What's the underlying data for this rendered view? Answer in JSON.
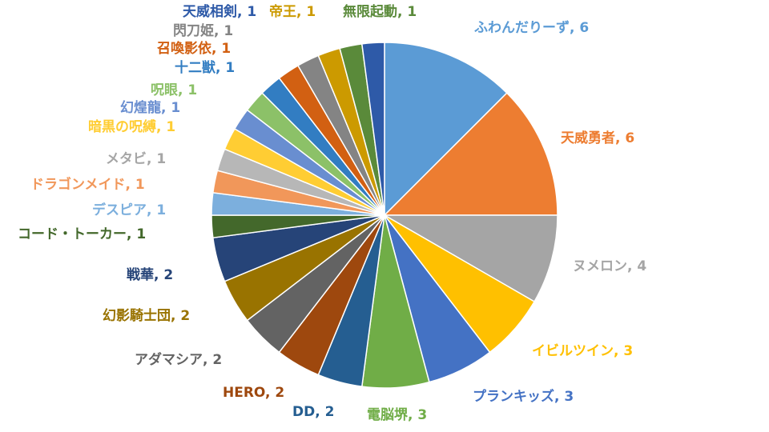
{
  "chart_data": {
    "type": "pie",
    "title": "",
    "slices": [
      {
        "label": "ふわんだりーず",
        "value": 6,
        "display": "ふわんだりーず, 6",
        "color": "#5b9bd5"
      },
      {
        "label": "天威勇者",
        "value": 6,
        "display": "天威勇者, 6",
        "color": "#ed7d31"
      },
      {
        "label": "ヌメロン",
        "value": 4,
        "display": "ヌメロン, 4",
        "color": "#a5a5a5"
      },
      {
        "label": "イビルツイン",
        "value": 3,
        "display": "イビルツイン, 3",
        "color": "#ffc000"
      },
      {
        "label": "プランキッズ",
        "value": 3,
        "display": "プランキッズ, 3",
        "color": "#4472c4"
      },
      {
        "label": "電脳堺",
        "value": 3,
        "display": "電脳堺, 3",
        "color": "#70ad47"
      },
      {
        "label": "DD",
        "value": 2,
        "display": "DD, 2",
        "color": "#255e91"
      },
      {
        "label": "HERO",
        "value": 2,
        "display": "HERO, 2",
        "color": "#9e480e"
      },
      {
        "label": "アダマシア",
        "value": 2,
        "display": "アダマシア, 2",
        "color": "#636363"
      },
      {
        "label": "幻影騎士団",
        "value": 2,
        "display": "幻影騎士団, 2",
        "color": "#997300"
      },
      {
        "label": "戦華",
        "value": 2,
        "display": "戦華, 2",
        "color": "#264478"
      },
      {
        "label": "コード・トーカー",
        "value": 1,
        "display": "コード・トーカー, 1",
        "color": "#43682b"
      },
      {
        "label": "デスピア",
        "value": 1,
        "display": "デスピア, 1",
        "color": "#7cafdd"
      },
      {
        "label": "ドラゴンメイド",
        "value": 1,
        "display": "ドラゴンメイド, 1",
        "color": "#f1975a"
      },
      {
        "label": "メタビ",
        "value": 1,
        "display": "メタビ, 1",
        "color": "#b7b7b7"
      },
      {
        "label": "暗黒の呪縛",
        "value": 1,
        "display": "暗黒の呪縛, 1",
        "color": "#ffcd33"
      },
      {
        "label": "幻煌龍",
        "value": 1,
        "display": "幻煌龍, 1",
        "color": "#698ed0"
      },
      {
        "label": "呪眼",
        "value": 1,
        "display": "呪眼, 1",
        "color": "#8cc168"
      },
      {
        "label": "十二獣",
        "value": 1,
        "display": "十二獣, 1",
        "color": "#327dc2"
      },
      {
        "label": "召喚影依",
        "value": 1,
        "display": "召喚影依, 1",
        "color": "#d26012"
      },
      {
        "label": "閃刀姫",
        "value": 1,
        "display": "閃刀姫, 1",
        "color": "#848484"
      },
      {
        "label": "帝王",
        "value": 1,
        "display": "帝王, 1",
        "color": "#cc9a00"
      },
      {
        "label": "無限起動",
        "value": 1,
        "display": "無限起動, 1",
        "color": "#5a8a3a"
      },
      {
        "label": "天威相剣",
        "value": 1,
        "display": "天威相剣, 1",
        "color": "#2e5aa8"
      }
    ],
    "legend": "none"
  }
}
